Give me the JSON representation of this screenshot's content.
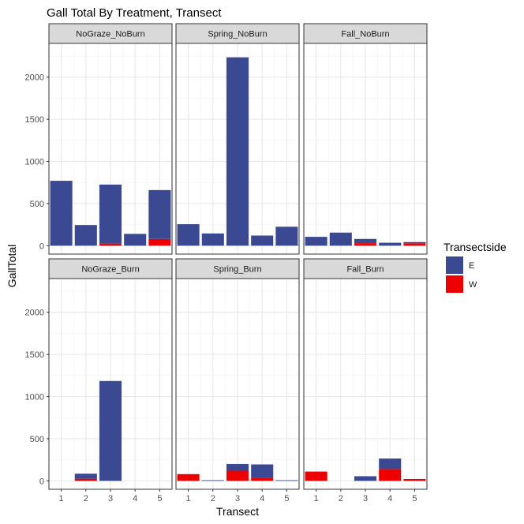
{
  "chart_data": {
    "type": "bar",
    "stacked": true,
    "faceted": true,
    "title": "Gall Total By Treatment, Transect",
    "xlabel": "Transect",
    "ylabel": "GallTotal",
    "ylim": [
      -100,
      2400
    ],
    "yticks": [
      0,
      500,
      1000,
      1500,
      2000
    ],
    "categories": [
      "1",
      "2",
      "3",
      "4",
      "5"
    ],
    "grid": true,
    "legend": {
      "title": "Transectside",
      "position": "right",
      "entries": [
        {
          "name": "E",
          "color": "#3B4992"
        },
        {
          "name": "W",
          "color": "#EE0000"
        }
      ]
    },
    "panels": [
      {
        "name": "NoGraze_NoBurn",
        "series": [
          {
            "name": "E",
            "values": [
              770,
              245,
              700,
              140,
              580
            ]
          },
          {
            "name": "W",
            "values": [
              0,
              0,
              25,
              0,
              80
            ]
          }
        ]
      },
      {
        "name": "Spring_NoBurn",
        "series": [
          {
            "name": "E",
            "values": [
              255,
              145,
              2235,
              120,
              225
            ]
          },
          {
            "name": "W",
            "values": [
              0,
              0,
              0,
              0,
              0
            ]
          }
        ]
      },
      {
        "name": "Fall_NoBurn",
        "series": [
          {
            "name": "E",
            "values": [
              105,
              155,
              50,
              35,
              15
            ]
          },
          {
            "name": "W",
            "values": [
              0,
              0,
              30,
              0,
              28
            ]
          }
        ]
      },
      {
        "name": "NoGraze_Burn",
        "series": [
          {
            "name": "E",
            "values": [
              0,
              60,
              1185,
              0,
              0
            ]
          },
          {
            "name": "W",
            "values": [
              0,
              25,
              0,
              0,
              0
            ]
          }
        ]
      },
      {
        "name": "Spring_Burn",
        "series": [
          {
            "name": "E",
            "values": [
              0,
              8,
              80,
              160,
              8
            ]
          },
          {
            "name": "W",
            "values": [
              80,
              0,
              120,
              35,
              0
            ]
          }
        ]
      },
      {
        "name": "Fall_Burn",
        "series": [
          {
            "name": "E",
            "values": [
              0,
              0,
              55,
              125,
              0
            ]
          },
          {
            "name": "W",
            "values": [
              110,
              0,
              0,
              140,
              22
            ]
          }
        ]
      }
    ]
  }
}
